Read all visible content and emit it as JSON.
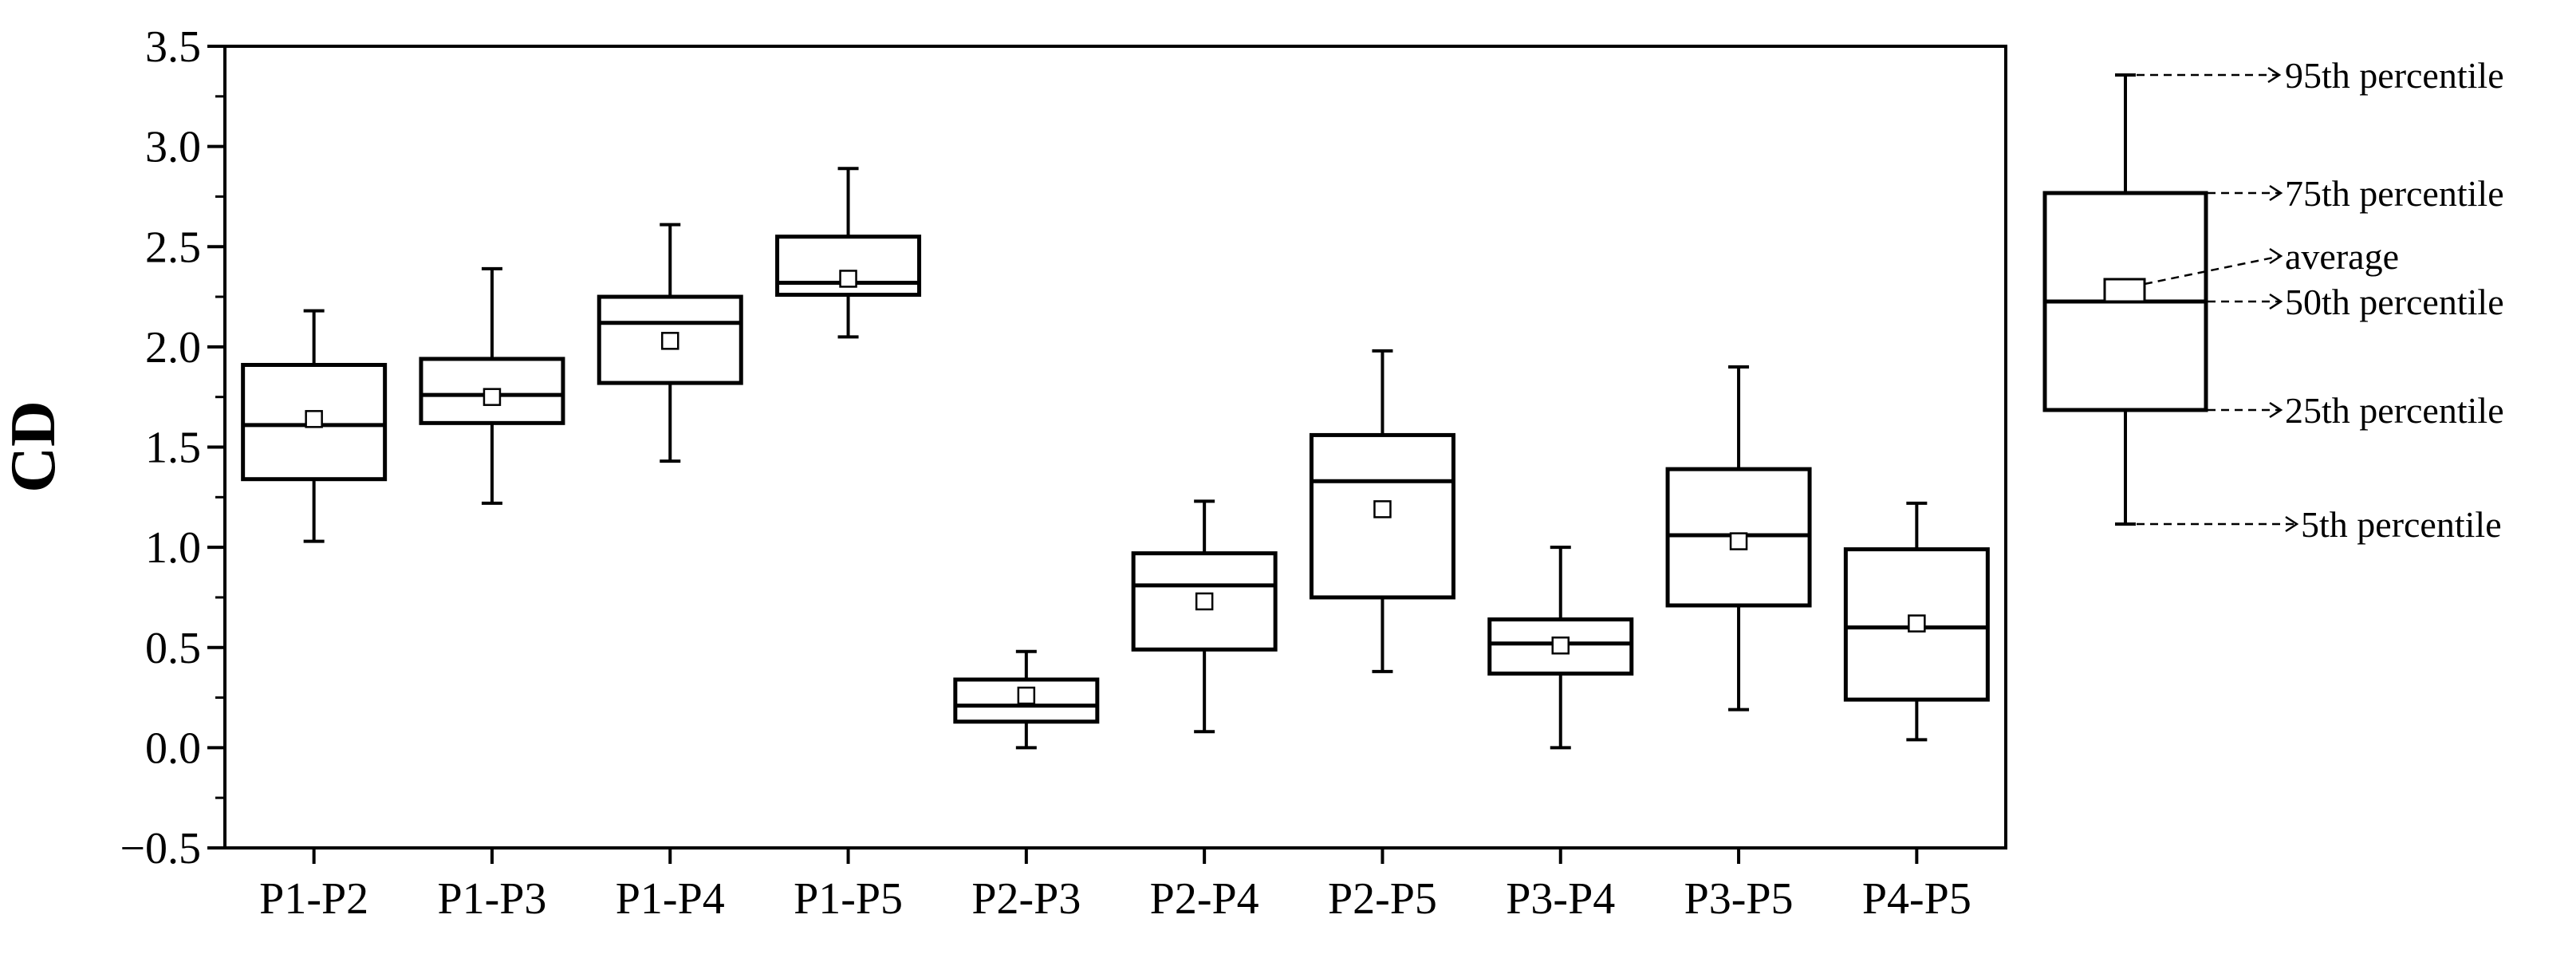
{
  "chart_data": {
    "type": "box",
    "ylabel": "CD",
    "xlabel": "",
    "ylim": [
      -0.5,
      3.5
    ],
    "yticks": [
      "−0.5",
      "0.0",
      "0.5",
      "1.0",
      "1.5",
      "2.0",
      "2.5",
      "3.0",
      "3.5"
    ],
    "categories": [
      "P1-P2",
      "P1-P3",
      "P1-P4",
      "P1-P5",
      "P2-P3",
      "P2-P4",
      "P2-P5",
      "P3-P4",
      "P3-P5",
      "P4-P5"
    ],
    "boxes": [
      {
        "p5": 1.03,
        "p25": 1.34,
        "median": 1.61,
        "p75": 1.91,
        "p95": 2.18,
        "mean": 1.64
      },
      {
        "p5": 1.22,
        "p25": 1.62,
        "median": 1.76,
        "p75": 1.94,
        "p95": 2.39,
        "mean": 1.75
      },
      {
        "p5": 1.43,
        "p25": 1.82,
        "median": 2.12,
        "p75": 2.25,
        "p95": 2.61,
        "mean": 2.03
      },
      {
        "p5": 2.05,
        "p25": 2.26,
        "median": 2.32,
        "p75": 2.55,
        "p95": 2.89,
        "mean": 2.34
      },
      {
        "p5": 0.0,
        "p25": 0.13,
        "median": 0.21,
        "p75": 0.34,
        "p95": 0.48,
        "mean": 0.26
      },
      {
        "p5": 0.08,
        "p25": 0.49,
        "median": 0.81,
        "p75": 0.97,
        "p95": 1.23,
        "mean": 0.73
      },
      {
        "p5": 0.38,
        "p25": 0.75,
        "median": 1.33,
        "p75": 1.56,
        "p95": 1.98,
        "mean": 1.19
      },
      {
        "p5": 0.0,
        "p25": 0.37,
        "median": 0.52,
        "p75": 0.64,
        "p95": 1.0,
        "mean": 0.51
      },
      {
        "p5": 0.19,
        "p25": 0.71,
        "median": 1.06,
        "p75": 1.39,
        "p95": 1.9,
        "mean": 1.03
      },
      {
        "p5": 0.04,
        "p25": 0.24,
        "median": 0.6,
        "p75": 0.99,
        "p95": 1.22,
        "mean": 0.62
      }
    ],
    "legend": {
      "p95": "95th percentile",
      "p75": "75th percentile",
      "mean": "average",
      "median": "50th percentile",
      "p25": "25th percentile",
      "p5": "5th percentile"
    },
    "grid": false
  },
  "colors": {
    "stroke": "#000000",
    "background": "#ffffff"
  }
}
